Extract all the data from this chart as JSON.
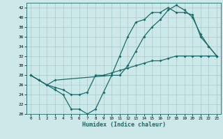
{
  "xlabel": "Humidex (Indice chaleur)",
  "bg_color": "#cce8e8",
  "grid_color": "#aacece",
  "line_color": "#1a6b6b",
  "xlim": [
    -0.5,
    23.5
  ],
  "ylim": [
    20,
    43
  ],
  "yticks": [
    20,
    22,
    24,
    26,
    28,
    30,
    32,
    34,
    36,
    38,
    40,
    42
  ],
  "xticks": [
    0,
    1,
    2,
    3,
    4,
    5,
    6,
    7,
    8,
    9,
    10,
    11,
    12,
    13,
    14,
    15,
    16,
    17,
    18,
    19,
    20,
    21,
    22,
    23
  ],
  "line1_x": [
    0,
    1,
    2,
    3,
    4,
    5,
    6,
    7,
    8,
    9,
    10,
    11,
    12,
    13,
    14,
    15,
    16,
    17,
    18,
    19,
    20,
    21,
    22,
    23
  ],
  "line1_y": [
    28,
    27,
    26,
    25.5,
    25,
    24,
    24,
    24.5,
    28,
    28,
    28.5,
    29,
    29.5,
    30,
    30.5,
    31,
    31,
    31.5,
    32,
    32,
    32,
    32,
    32,
    32
  ],
  "line2_x": [
    0,
    1,
    2,
    3,
    4,
    5,
    6,
    7,
    8,
    9,
    10,
    11,
    12,
    13,
    14,
    15,
    16,
    17,
    18,
    19,
    20,
    21,
    22,
    23
  ],
  "line2_y": [
    28,
    27,
    26,
    25,
    24,
    21,
    21,
    20,
    21,
    24.5,
    28,
    32,
    36,
    39,
    39.5,
    41,
    41,
    42,
    41,
    41,
    40.5,
    36,
    34,
    32
  ],
  "line3_x": [
    0,
    2,
    3,
    10,
    11,
    12,
    13,
    14,
    15,
    16,
    17,
    18,
    19,
    20,
    21,
    22,
    23
  ],
  "line3_y": [
    28,
    26,
    27,
    28,
    28,
    30,
    33,
    36,
    38,
    39.5,
    41.5,
    42.5,
    41.5,
    40,
    36.5,
    34,
    32
  ]
}
